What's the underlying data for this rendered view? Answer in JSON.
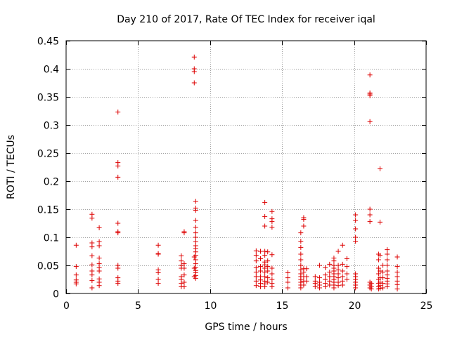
{
  "chart_data": {
    "type": "scatter",
    "title": "Day 210 of 2017, Rate Of TEC Index for receiver iqal",
    "xlabel": "GPS time / hours",
    "ylabel": "ROTI / TECUs",
    "xlim": [
      0,
      25
    ],
    "ylim": [
      0,
      0.45
    ],
    "xticks": [
      0,
      5,
      10,
      15,
      20,
      25
    ],
    "xtick_labels": [
      "0",
      "5",
      "10",
      "15",
      "20",
      "25"
    ],
    "yticks": [
      0,
      0.05,
      0.1,
      0.15,
      0.2,
      0.25,
      0.3,
      0.35,
      0.4,
      0.45
    ],
    "ytick_labels": [
      "0",
      "0.05",
      "0.1",
      "0.15",
      "0.2",
      "0.25",
      "0.3",
      "0.35",
      "0.4",
      "0.45"
    ],
    "grid": true,
    "marker": "+",
    "color": "#dd0000",
    "series": [
      {
        "name": "ROTI",
        "points": [
          [
            0.7,
            0.086
          ],
          [
            0.7,
            0.048
          ],
          [
            0.7,
            0.033
          ],
          [
            0.7,
            0.024
          ],
          [
            0.7,
            0.02
          ],
          [
            0.7,
            0.017
          ],
          [
            1.8,
            0.141
          ],
          [
            1.8,
            0.134
          ],
          [
            1.8,
            0.09
          ],
          [
            1.8,
            0.083
          ],
          [
            1.8,
            0.067
          ],
          [
            1.8,
            0.051
          ],
          [
            1.8,
            0.04
          ],
          [
            1.8,
            0.033
          ],
          [
            1.8,
            0.023
          ],
          [
            1.8,
            0.01
          ],
          [
            2.3,
            0.117
          ],
          [
            2.3,
            0.092
          ],
          [
            2.3,
            0.085
          ],
          [
            2.3,
            0.063
          ],
          [
            2.3,
            0.053
          ],
          [
            2.3,
            0.046
          ],
          [
            2.3,
            0.04
          ],
          [
            2.3,
            0.026
          ],
          [
            2.3,
            0.02
          ],
          [
            2.3,
            0.014
          ],
          [
            3.6,
            0.323
          ],
          [
            3.6,
            0.233
          ],
          [
            3.6,
            0.227
          ],
          [
            3.6,
            0.207
          ],
          [
            3.6,
            0.125
          ],
          [
            3.6,
            0.11
          ],
          [
            3.6,
            0.108
          ],
          [
            3.6,
            0.05
          ],
          [
            3.6,
            0.045
          ],
          [
            3.6,
            0.028
          ],
          [
            3.6,
            0.022
          ],
          [
            3.6,
            0.018
          ],
          [
            6.4,
            0.086
          ],
          [
            6.4,
            0.071
          ],
          [
            6.4,
            0.07
          ],
          [
            6.4,
            0.042
          ],
          [
            6.4,
            0.037
          ],
          [
            6.4,
            0.025
          ],
          [
            6.4,
            0.018
          ],
          [
            8.0,
            0.067
          ],
          [
            8.0,
            0.058
          ],
          [
            8.0,
            0.05
          ],
          [
            8.0,
            0.045
          ],
          [
            8.0,
            0.03
          ],
          [
            8.0,
            0.025
          ],
          [
            8.0,
            0.018
          ],
          [
            8.0,
            0.012
          ],
          [
            8.2,
            0.11
          ],
          [
            8.2,
            0.108
          ],
          [
            8.2,
            0.053
          ],
          [
            8.2,
            0.045
          ],
          [
            8.2,
            0.033
          ],
          [
            8.2,
            0.02
          ],
          [
            8.2,
            0.012
          ],
          [
            8.9,
            0.421
          ],
          [
            8.9,
            0.4
          ],
          [
            8.9,
            0.395
          ],
          [
            8.9,
            0.375
          ],
          [
            8.9,
            0.065
          ],
          [
            8.9,
            0.045
          ],
          [
            8.9,
            0.03
          ],
          [
            9.0,
            0.164
          ],
          [
            9.0,
            0.152
          ],
          [
            9.0,
            0.148
          ],
          [
            9.0,
            0.13
          ],
          [
            9.0,
            0.118
          ],
          [
            9.0,
            0.108
          ],
          [
            9.0,
            0.1
          ],
          [
            9.0,
            0.092
          ],
          [
            9.0,
            0.085
          ],
          [
            9.0,
            0.08
          ],
          [
            9.0,
            0.074
          ],
          [
            9.0,
            0.068
          ],
          [
            9.0,
            0.06
          ],
          [
            9.0,
            0.053
          ],
          [
            9.0,
            0.046
          ],
          [
            9.0,
            0.041
          ],
          [
            9.0,
            0.037
          ],
          [
            9.0,
            0.032
          ],
          [
            9.0,
            0.027
          ],
          [
            13.2,
            0.076
          ],
          [
            13.2,
            0.068
          ],
          [
            13.2,
            0.058
          ],
          [
            13.2,
            0.046
          ],
          [
            13.2,
            0.038
          ],
          [
            13.2,
            0.03
          ],
          [
            13.2,
            0.022
          ],
          [
            13.2,
            0.014
          ],
          [
            13.5,
            0.075
          ],
          [
            13.5,
            0.062
          ],
          [
            13.5,
            0.048
          ],
          [
            13.5,
            0.04
          ],
          [
            13.5,
            0.03
          ],
          [
            13.5,
            0.024
          ],
          [
            13.5,
            0.018
          ],
          [
            13.5,
            0.012
          ],
          [
            13.8,
            0.162
          ],
          [
            13.8,
            0.137
          ],
          [
            13.8,
            0.12
          ],
          [
            13.8,
            0.075
          ],
          [
            13.8,
            0.068
          ],
          [
            13.8,
            0.056
          ],
          [
            13.8,
            0.051
          ],
          [
            13.8,
            0.045
          ],
          [
            13.8,
            0.038
          ],
          [
            13.8,
            0.03
          ],
          [
            13.8,
            0.022
          ],
          [
            13.8,
            0.017
          ],
          [
            13.8,
            0.012
          ],
          [
            14.0,
            0.074
          ],
          [
            14.0,
            0.058
          ],
          [
            14.0,
            0.048
          ],
          [
            14.0,
            0.04
          ],
          [
            14.0,
            0.028
          ],
          [
            14.0,
            0.02
          ],
          [
            14.3,
            0.146
          ],
          [
            14.3,
            0.133
          ],
          [
            14.3,
            0.128
          ],
          [
            14.3,
            0.118
          ],
          [
            14.3,
            0.069
          ],
          [
            14.3,
            0.045
          ],
          [
            14.3,
            0.035
          ],
          [
            14.3,
            0.025
          ],
          [
            14.3,
            0.018
          ],
          [
            14.3,
            0.012
          ],
          [
            15.4,
            0.037
          ],
          [
            15.4,
            0.028
          ],
          [
            15.4,
            0.02
          ],
          [
            15.4,
            0.01
          ],
          [
            16.3,
            0.108
          ],
          [
            16.3,
            0.093
          ],
          [
            16.3,
            0.082
          ],
          [
            16.3,
            0.07
          ],
          [
            16.3,
            0.06
          ],
          [
            16.3,
            0.05
          ],
          [
            16.3,
            0.042
          ],
          [
            16.3,
            0.035
          ],
          [
            16.3,
            0.03
          ],
          [
            16.3,
            0.025
          ],
          [
            16.3,
            0.02
          ],
          [
            16.3,
            0.015
          ],
          [
            16.3,
            0.01
          ],
          [
            16.5,
            0.135
          ],
          [
            16.5,
            0.132
          ],
          [
            16.5,
            0.12
          ],
          [
            16.5,
            0.044
          ],
          [
            16.5,
            0.038
          ],
          [
            16.5,
            0.03
          ],
          [
            16.5,
            0.022
          ],
          [
            16.5,
            0.015
          ],
          [
            16.7,
            0.044
          ],
          [
            16.7,
            0.03
          ],
          [
            16.7,
            0.022
          ],
          [
            17.3,
            0.03
          ],
          [
            17.3,
            0.022
          ],
          [
            17.3,
            0.018
          ],
          [
            17.3,
            0.012
          ],
          [
            17.6,
            0.05
          ],
          [
            17.6,
            0.028
          ],
          [
            17.6,
            0.02
          ],
          [
            17.6,
            0.015
          ],
          [
            17.6,
            0.01
          ],
          [
            18.0,
            0.046
          ],
          [
            18.0,
            0.033
          ],
          [
            18.0,
            0.025
          ],
          [
            18.0,
            0.018
          ],
          [
            18.0,
            0.012
          ],
          [
            18.3,
            0.052
          ],
          [
            18.3,
            0.038
          ],
          [
            18.3,
            0.03
          ],
          [
            18.3,
            0.022
          ],
          [
            18.3,
            0.015
          ],
          [
            18.6,
            0.063
          ],
          [
            18.6,
            0.058
          ],
          [
            18.6,
            0.05
          ],
          [
            18.6,
            0.045
          ],
          [
            18.6,
            0.04
          ],
          [
            18.6,
            0.035
          ],
          [
            18.6,
            0.03
          ],
          [
            18.6,
            0.025
          ],
          [
            18.6,
            0.02
          ],
          [
            18.6,
            0.015
          ],
          [
            18.6,
            0.01
          ],
          [
            18.9,
            0.075
          ],
          [
            18.9,
            0.05
          ],
          [
            18.9,
            0.042
          ],
          [
            18.9,
            0.035
          ],
          [
            18.9,
            0.028
          ],
          [
            18.9,
            0.02
          ],
          [
            18.9,
            0.014
          ],
          [
            19.2,
            0.086
          ],
          [
            19.2,
            0.052
          ],
          [
            19.2,
            0.04
          ],
          [
            19.2,
            0.03
          ],
          [
            19.2,
            0.022
          ],
          [
            19.2,
            0.015
          ],
          [
            19.5,
            0.062
          ],
          [
            19.5,
            0.048
          ],
          [
            19.5,
            0.035
          ],
          [
            19.5,
            0.025
          ],
          [
            20.1,
            0.14
          ],
          [
            20.1,
            0.13
          ],
          [
            20.1,
            0.115
          ],
          [
            20.1,
            0.1
          ],
          [
            20.1,
            0.093
          ],
          [
            20.1,
            0.035
          ],
          [
            20.1,
            0.03
          ],
          [
            20.1,
            0.025
          ],
          [
            20.1,
            0.02
          ],
          [
            20.1,
            0.015
          ],
          [
            20.1,
            0.01
          ],
          [
            21.1,
            0.389
          ],
          [
            21.1,
            0.357
          ],
          [
            21.1,
            0.355
          ],
          [
            21.1,
            0.352
          ],
          [
            21.1,
            0.306
          ],
          [
            21.1,
            0.15
          ],
          [
            21.1,
            0.14
          ],
          [
            21.1,
            0.128
          ],
          [
            21.1,
            0.02
          ],
          [
            21.1,
            0.015
          ],
          [
            21.1,
            0.01
          ],
          [
            21.2,
            0.018
          ],
          [
            21.2,
            0.012
          ],
          [
            21.2,
            0.008
          ],
          [
            21.7,
            0.07
          ],
          [
            21.7,
            0.06
          ],
          [
            21.7,
            0.045
          ],
          [
            21.7,
            0.035
          ],
          [
            21.7,
            0.025
          ],
          [
            21.7,
            0.018
          ],
          [
            21.7,
            0.012
          ],
          [
            21.7,
            0.008
          ],
          [
            21.8,
            0.222
          ],
          [
            21.8,
            0.127
          ],
          [
            21.8,
            0.068
          ],
          [
            21.8,
            0.04
          ],
          [
            21.8,
            0.028
          ],
          [
            21.8,
            0.02
          ],
          [
            21.8,
            0.014
          ],
          [
            21.8,
            0.009
          ],
          [
            22.0,
            0.05
          ],
          [
            22.0,
            0.038
          ],
          [
            22.0,
            0.028
          ],
          [
            22.0,
            0.018
          ],
          [
            22.0,
            0.01
          ],
          [
            22.3,
            0.078
          ],
          [
            22.3,
            0.07
          ],
          [
            22.3,
            0.06
          ],
          [
            22.3,
            0.05
          ],
          [
            22.3,
            0.04
          ],
          [
            22.3,
            0.033
          ],
          [
            22.3,
            0.027
          ],
          [
            22.3,
            0.022
          ],
          [
            22.3,
            0.017
          ],
          [
            22.3,
            0.012
          ],
          [
            23.0,
            0.065
          ],
          [
            23.0,
            0.048
          ],
          [
            23.0,
            0.038
          ],
          [
            23.0,
            0.03
          ],
          [
            23.0,
            0.022
          ],
          [
            23.0,
            0.016
          ],
          [
            23.0,
            0.008
          ]
        ]
      }
    ]
  }
}
